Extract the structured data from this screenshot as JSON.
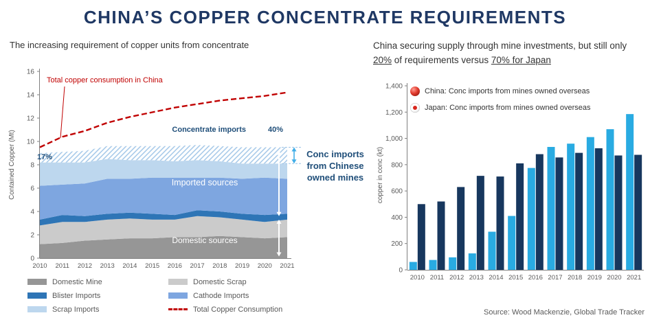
{
  "title": "CHINA’S COPPER CONCENTRATE REQUIREMENTS",
  "left": {
    "subtitle": "The increasing requirement of copper units from concentrate",
    "annotations": {
      "consumption_label": "Total copper consumption in China",
      "pct_2010": "17%",
      "concentrate_imports": "Concentrate imports",
      "pct_2021": "40%",
      "imported_sources": "Imported sources",
      "domestic_sources": "Domestic sources",
      "conc_chinese_mines": "Conc imports from Chinese owned mines"
    },
    "legend": [
      {
        "label": "Domestic Mine",
        "swatch": "#969696"
      },
      {
        "label": "Domestic Scrap",
        "swatch": "#CBCBCB"
      },
      {
        "label": "Blister Imports",
        "swatch": "#2E75B6"
      },
      {
        "label": "Cathode Imports",
        "swatch": "#7EA6E0"
      },
      {
        "label": "Scrap Imports",
        "swatch": "#BDD7EE"
      },
      {
        "label": "Total Copper Consumption",
        "swatch": "dashed-red"
      }
    ]
  },
  "right": {
    "header": {
      "line1": "China securing supply through mine investments, but still only",
      "pct_china": "20%",
      "mid": " of requirements versus ",
      "pct_japan": "70% for Japan"
    },
    "source": "Source: Wood Mackenzie, Global Trade Tracker"
  },
  "chart_data": [
    {
      "type": "area",
      "title": "The increasing requirement of copper units from concentrate",
      "xlabel": "",
      "ylabel": "Contained Copper (Mt)",
      "ylim": [
        0,
        16
      ],
      "ytick_step": 2,
      "grid": false,
      "x": [
        2010,
        2011,
        2012,
        2013,
        2014,
        2015,
        2016,
        2017,
        2018,
        2019,
        2020,
        2021
      ],
      "series": [
        {
          "name": "Domestic Mine",
          "color": "#969696",
          "values": [
            1.2,
            1.3,
            1.5,
            1.6,
            1.7,
            1.7,
            1.8,
            1.8,
            1.9,
            1.8,
            1.7,
            1.8
          ]
        },
        {
          "name": "Domestic Scrap",
          "color": "#CBCBCB",
          "values": [
            1.6,
            1.8,
            1.6,
            1.7,
            1.7,
            1.6,
            1.5,
            1.8,
            1.6,
            1.5,
            1.4,
            1.5
          ]
        },
        {
          "name": "Blister Imports",
          "color": "#2E75B6",
          "values": [
            0.5,
            0.6,
            0.5,
            0.5,
            0.5,
            0.5,
            0.4,
            0.5,
            0.5,
            0.5,
            0.6,
            0.5
          ]
        },
        {
          "name": "Cathode Imports",
          "color": "#7EA6E0",
          "values": [
            2.9,
            2.6,
            2.8,
            3.0,
            2.9,
            3.1,
            3.2,
            2.8,
            2.9,
            3.0,
            3.2,
            3.0
          ]
        },
        {
          "name": "Scrap Imports",
          "color": "#BDD7EE",
          "values": [
            2.0,
            1.9,
            1.8,
            1.7,
            1.6,
            1.5,
            1.4,
            1.5,
            1.4,
            1.3,
            1.2,
            1.3
          ]
        },
        {
          "name": "Concentrate Imports",
          "color": "hatch",
          "values": [
            0.8,
            0.9,
            1.0,
            1.1,
            1.2,
            1.2,
            1.3,
            1.3,
            1.3,
            1.4,
            1.4,
            1.4
          ]
        }
      ],
      "line_series": {
        "name": "Total Copper Consumption",
        "color": "#C00000",
        "values": [
          9.5,
          10.4,
          10.9,
          11.6,
          12.1,
          12.5,
          12.9,
          13.2,
          13.5,
          13.7,
          13.9,
          14.2
        ]
      }
    },
    {
      "type": "bar",
      "xlabel": "",
      "ylabel": "copper in conc (kt)",
      "ylim": [
        0,
        1400
      ],
      "ytick_step": 200,
      "grid": false,
      "legend_position": "top-left",
      "categories": [
        "2010",
        "2011",
        "2012",
        "2013",
        "2014",
        "2015",
        "2016",
        "2017",
        "2018",
        "2019",
        "2020",
        "2021"
      ],
      "series": [
        {
          "name": "China: Conc imports from mines owned overseas",
          "color": "#29ABE2",
          "values": [
            60,
            75,
            95,
            125,
            290,
            410,
            775,
            935,
            960,
            1010,
            1070,
            1185
          ]
        },
        {
          "name": "Japan: Conc imports from mines owned overseas",
          "color": "#17375E",
          "values": [
            500,
            520,
            630,
            715,
            710,
            810,
            880,
            855,
            890,
            925,
            870,
            875
          ]
        }
      ]
    }
  ]
}
